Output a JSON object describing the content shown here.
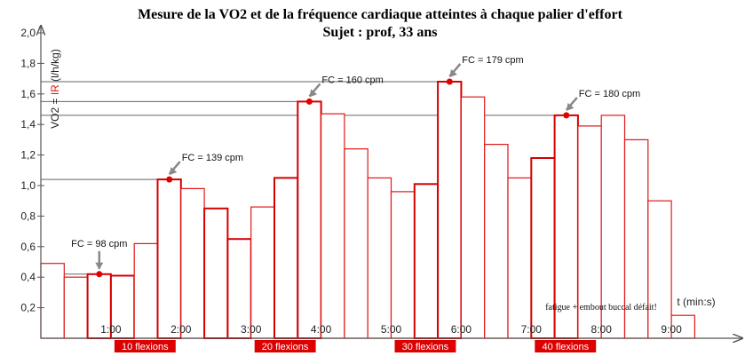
{
  "chart_data": {
    "type": "bar",
    "title": "Mesure de la VO2 et de la fréquence cardiaque atteintes à chaque palier d'effort",
    "subtitle": "Sujet : prof, 33 ans",
    "ylabel_prefix": "VO2 = ",
    "ylabel_ir": "IR",
    "ylabel_suffix": " (l/h/kg)",
    "xlabel": "t (min:s)",
    "ylim": [
      0,
      2.0
    ],
    "y_ticks": [
      "0,2",
      "0,4",
      "0,6",
      "0,8",
      "1,0",
      "1,2",
      "1,4",
      "1,6",
      "1,8",
      "2,0"
    ],
    "x_ticks": [
      "1:00",
      "2:00",
      "3:00",
      "4:00",
      "5:00",
      "6:00",
      "7:00",
      "8:00",
      "9:00"
    ],
    "bar_width_s": 20,
    "bars": [
      {
        "t_start": 0,
        "value": 0.49,
        "effort": false
      },
      {
        "t_start": 20,
        "value": 0.4,
        "effort": false
      },
      {
        "t_start": 40,
        "value": 0.42,
        "effort": true
      },
      {
        "t_start": 60,
        "value": 0.41,
        "effort": true
      },
      {
        "t_start": 80,
        "value": 0.62,
        "effort": false
      },
      {
        "t_start": 100,
        "value": 1.04,
        "effort": true
      },
      {
        "t_start": 120,
        "value": 0.98,
        "effort": false
      },
      {
        "t_start": 140,
        "value": 0.85,
        "effort": true
      },
      {
        "t_start": 160,
        "value": 0.65,
        "effort": true
      },
      {
        "t_start": 180,
        "value": 0.86,
        "effort": false
      },
      {
        "t_start": 200,
        "value": 1.05,
        "effort": true
      },
      {
        "t_start": 220,
        "value": 1.55,
        "effort": true
      },
      {
        "t_start": 240,
        "value": 1.47,
        "effort": false
      },
      {
        "t_start": 260,
        "value": 1.24,
        "effort": false
      },
      {
        "t_start": 280,
        "value": 1.05,
        "effort": false
      },
      {
        "t_start": 300,
        "value": 0.96,
        "effort": false
      },
      {
        "t_start": 320,
        "value": 1.01,
        "effort": true
      },
      {
        "t_start": 340,
        "value": 1.68,
        "effort": true
      },
      {
        "t_start": 360,
        "value": 1.58,
        "effort": false
      },
      {
        "t_start": 380,
        "value": 1.27,
        "effort": false
      },
      {
        "t_start": 400,
        "value": 1.05,
        "effort": false
      },
      {
        "t_start": 420,
        "value": 1.18,
        "effort": true
      },
      {
        "t_start": 440,
        "value": 1.46,
        "effort": true
      },
      {
        "t_start": 460,
        "value": 1.39,
        "effort": false
      },
      {
        "t_start": 480,
        "value": 1.46,
        "effort": false
      },
      {
        "t_start": 500,
        "value": 1.3,
        "effort": false
      },
      {
        "t_start": 520,
        "value": 0.9,
        "effort": false
      },
      {
        "t_start": 540,
        "value": 0.15,
        "effort": false
      }
    ],
    "markers": [
      {
        "label": "FC = 98 cpm",
        "t": 50,
        "value": 0.42
      },
      {
        "label": "FC = 139 cpm",
        "t": 110,
        "value": 1.04
      },
      {
        "label": "FC = 160 cpm",
        "t": 230,
        "value": 1.55
      },
      {
        "label": "FC = 179 cpm",
        "t": 350,
        "value": 1.68
      },
      {
        "label": "FC = 180 cpm",
        "t": 450,
        "value": 1.46
      }
    ],
    "flexions": [
      {
        "label": "10 flexions",
        "t_start": 60,
        "t_end": 120
      },
      {
        "label": "20 flexions",
        "t_start": 180,
        "t_end": 240
      },
      {
        "label": "30 flexions",
        "t_start": 300,
        "t_end": 360
      },
      {
        "label": "40 flexions",
        "t_start": 420,
        "t_end": 480
      }
    ],
    "annotation": "fatigue + embout buccal défait!",
    "colors": {
      "bar_stroke": "#e01818",
      "effort_stroke": "#d40000",
      "marker": "#e00000",
      "arrow": "#888888",
      "flexion_bg": "#dd0000",
      "axis": "#555555"
    }
  }
}
